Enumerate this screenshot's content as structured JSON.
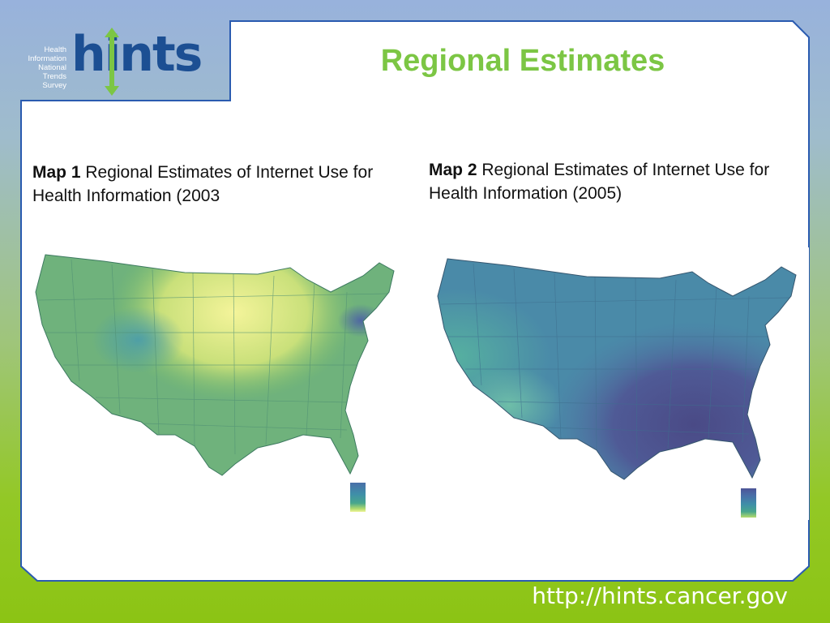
{
  "slide": {
    "title": "Regional Estimates",
    "footer_url": "http://hints.cancer.gov"
  },
  "logo": {
    "mark": "hints",
    "words": [
      "Health",
      "Information",
      "National",
      "Trends",
      "Survey"
    ]
  },
  "maps": [
    {
      "label_bold": "Map 1",
      "label_text": " Regional Estimates of Internet Use for Health Information (2003"
    },
    {
      "label_bold": "Map 2",
      "label_text": " Regional Estimates of Internet Use for Health Information (2005)"
    }
  ],
  "colors": {
    "title_green": "#7cc644",
    "logo_blue": "#1c4f93",
    "frame_blue": "#2a5bb0"
  }
}
